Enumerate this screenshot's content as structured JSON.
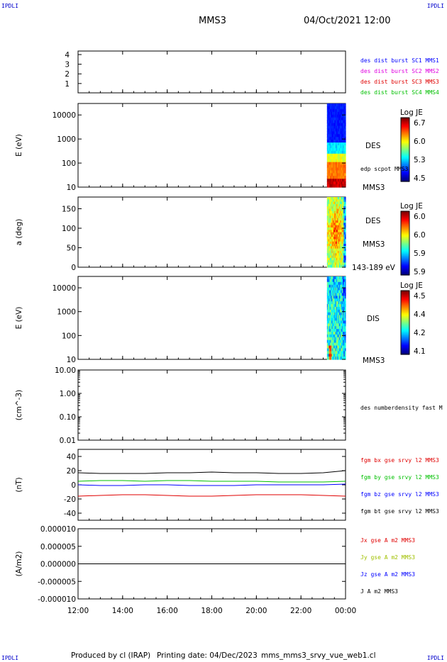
{
  "corner_label": "IPDLI",
  "header": {
    "title": "MMS3",
    "datetime": "04/Oct/2021 12:00"
  },
  "footer": {
    "produced_by": "Produced by cl (IRAP)",
    "printing_date": "Printing date: 04/Dec/2023",
    "file": "mms_mms3_srvy_vue_web1.cl"
  },
  "chart_data": [
    {
      "type": "line",
      "panel": "spacecraft-id",
      "ylabel": "",
      "yticks": [
        "4",
        "3",
        "2",
        "1"
      ],
      "series": [
        {
          "name": "des dist burst SC1 MMS1",
          "color": "#0000ff",
          "values": []
        },
        {
          "name": "des dist burst SC2 MMS2",
          "color": "#e000e0",
          "values": []
        },
        {
          "name": "des dist burst SC3 MMS3",
          "color": "#e00000",
          "values": []
        },
        {
          "name": "des dist burst SC4 MMS4",
          "color": "#00c000",
          "values": []
        }
      ]
    },
    {
      "type": "heatmap",
      "panel": "electron-energy-spectrogram",
      "ylabel": "E (eV)",
      "yscale": "log",
      "ylim": [
        10,
        30000
      ],
      "yticks": [
        "10000",
        "1000",
        "100",
        "10"
      ],
      "data_time_range": [
        "23:10",
        "00:00"
      ],
      "labels": [
        "DES",
        "edp scpot MMS3",
        "MMS3"
      ],
      "colorbar": {
        "title": "Log JE",
        "ticks": [
          "6.7",
          "6.0",
          "5.3",
          "4.5"
        ],
        "range": [
          4.5,
          6.7
        ]
      }
    },
    {
      "type": "heatmap",
      "panel": "electron-pitch-angle",
      "ylabel": "a (deg)",
      "ylim": [
        0,
        180
      ],
      "yticks": [
        "150",
        "100",
        "50",
        "0"
      ],
      "data_time_range": [
        "23:10",
        "00:00"
      ],
      "labels": [
        "DES",
        "MMS3",
        "143-189 eV"
      ],
      "colorbar": {
        "title": "Log JE",
        "ticks": [
          "6.0",
          "6.0",
          "5.9",
          "5.9"
        ],
        "range": [
          5.9,
          6.0
        ]
      }
    },
    {
      "type": "heatmap",
      "panel": "ion-energy-spectrogram",
      "ylabel": "E (eV)",
      "yscale": "log",
      "ylim": [
        10,
        30000
      ],
      "yticks": [
        "10000",
        "1000",
        "100",
        "10"
      ],
      "data_time_range": [
        "23:10",
        "00:00"
      ],
      "labels": [
        "DIS",
        "MMS3"
      ],
      "colorbar": {
        "title": "Log JE",
        "ticks": [
          "4.5",
          "4.4",
          "4.2",
          "4.1"
        ],
        "range": [
          4.1,
          4.5
        ]
      }
    },
    {
      "type": "line",
      "panel": "electron-density",
      "ylabel": "(cm^-3)",
      "yscale": "log",
      "ylim": [
        0.01,
        10
      ],
      "yticks": [
        "10.00",
        "1.00",
        "0.10",
        "0.01"
      ],
      "series": [
        {
          "name": "des numberdensity fast M",
          "color": "#000000",
          "values": []
        }
      ]
    },
    {
      "type": "line",
      "panel": "magnetic-field",
      "ylabel": "(nT)",
      "ylim": [
        -50,
        50
      ],
      "yticks": [
        "40",
        "20",
        "0",
        "-20",
        "-40"
      ],
      "x": [
        "12:00",
        "13:00",
        "14:00",
        "15:00",
        "16:00",
        "17:00",
        "18:00",
        "19:00",
        "20:00",
        "21:00",
        "22:00",
        "23:00",
        "00:00"
      ],
      "series": [
        {
          "name": "fgm bx gse srvy l2 MMS3",
          "color": "#e00000",
          "values": [
            -16,
            -15,
            -14,
            -14,
            -15,
            -16,
            -16,
            -15,
            -14,
            -14,
            -14,
            -15,
            -16
          ]
        },
        {
          "name": "fgm by gse srvy l2 MMS3",
          "color": "#00c000",
          "values": [
            5,
            6,
            6,
            5,
            6,
            6,
            5,
            5,
            5,
            4,
            4,
            4,
            5
          ]
        },
        {
          "name": "fgm bz gse srvy l2 MMS3",
          "color": "#0000ff",
          "values": [
            0,
            -1,
            -1,
            0,
            0,
            -1,
            -1,
            -1,
            0,
            0,
            0,
            0,
            1
          ]
        },
        {
          "name": "fgm bt gse srvy l2 MMS3",
          "color": "#000000",
          "values": [
            17,
            16,
            16,
            16,
            17,
            17,
            18,
            17,
            17,
            16,
            16,
            17,
            20
          ]
        }
      ]
    },
    {
      "type": "line",
      "panel": "current-density",
      "ylabel": "(A/m2)",
      "ylim": [
        -1e-05,
        1e-05
      ],
      "yticks": [
        "0.000010",
        "0.000005",
        "0.000000",
        "-0.000005",
        "-0.000010"
      ],
      "x": [
        "12:00",
        "18:00",
        "00:00"
      ],
      "series": [
        {
          "name": "Jx gse A m2 MMS3",
          "color": "#e00000",
          "values": [
            0,
            0,
            0
          ]
        },
        {
          "name": "Jy gse A m2 MMS3",
          "color": "#a0c000",
          "values": [
            0,
            0,
            0
          ]
        },
        {
          "name": "Jz gse A m2 MMS3",
          "color": "#0000ff",
          "values": [
            0,
            0,
            0
          ]
        },
        {
          "name": "J A m2 MMS3",
          "color": "#000000",
          "values": [
            0,
            0,
            0
          ]
        }
      ]
    }
  ],
  "x_axis": {
    "ticks": [
      "12:00",
      "14:00",
      "16:00",
      "18:00",
      "20:00",
      "22:00",
      "00:00"
    ],
    "range": [
      "12:00",
      "00:00"
    ]
  }
}
